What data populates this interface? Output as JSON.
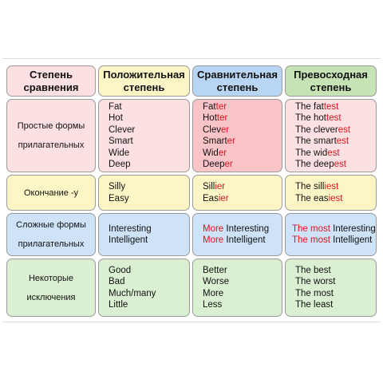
{
  "headers": {
    "degree": [
      "Степень",
      "сравнения"
    ],
    "positive": [
      "Положительная",
      "степень"
    ],
    "comparative": [
      "Сравнительная",
      "степень"
    ],
    "superlative": [
      "Превосходная",
      "степень"
    ]
  },
  "rows": [
    {
      "label": [
        "Простые формы",
        "прилагательных"
      ],
      "positive": [
        "Fat",
        "Hot",
        "Clever",
        "Smart",
        "Wide",
        "Deep"
      ],
      "comparative": [
        [
          "Fat",
          "ter"
        ],
        [
          "Hot",
          "ter"
        ],
        [
          "Clev",
          "er"
        ],
        [
          "Smart",
          "er"
        ],
        [
          "Wid",
          "er"
        ],
        [
          "Deep",
          "er"
        ]
      ],
      "superlative": [
        [
          "The fat",
          "test"
        ],
        [
          "The hot",
          "test"
        ],
        [
          "The clever",
          "est"
        ],
        [
          "The smart",
          "est"
        ],
        [
          "The wid",
          "est"
        ],
        [
          "The deep",
          "est"
        ]
      ]
    },
    {
      "label": [
        "Окончание -y"
      ],
      "positive": [
        "Silly",
        "Easy"
      ],
      "comparative": [
        [
          "Sill",
          "ier"
        ],
        [
          "Eas",
          "ier"
        ]
      ],
      "superlative": [
        [
          "The sill",
          "iest"
        ],
        [
          "The eas",
          "iest"
        ]
      ]
    },
    {
      "label": [
        "Сложные формы",
        "прилагательных"
      ],
      "positive": [
        "Interesting",
        "Intelligent"
      ],
      "comparative": [
        [
          "More",
          " Interesting"
        ],
        [
          "More",
          " Intelligent"
        ]
      ],
      "superlative": [
        [
          "The most",
          " Interesting"
        ],
        [
          "The most",
          " Intelligent"
        ]
      ]
    },
    {
      "label": [
        "Некоторые",
        "исключения"
      ],
      "positive": [
        "Good",
        "Bad",
        "Much/many",
        "Little"
      ],
      "comparative": [
        "Better",
        "Worse",
        "More",
        "Less"
      ],
      "superlative": [
        "The best",
        "The worst",
        "The most",
        "The least"
      ]
    }
  ]
}
